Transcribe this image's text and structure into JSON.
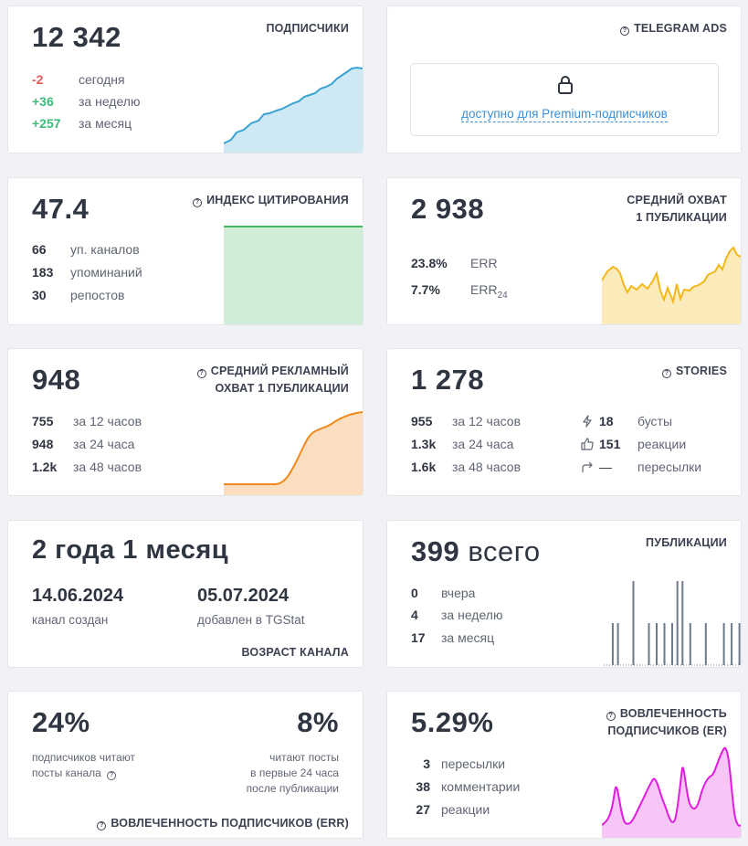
{
  "subscribers": {
    "title": "ПОДПИСЧИКИ",
    "value": "12 342",
    "rows": [
      {
        "value": "-2",
        "label": "сегодня"
      },
      {
        "value": "+36",
        "label": "за неделю"
      },
      {
        "value": "+257",
        "label": "за месяц"
      }
    ],
    "color": "#3ba2d3"
  },
  "ads": {
    "title": "TELEGRAM ADS",
    "premium_link": "доступно для Premium-подписчиков"
  },
  "citation": {
    "title": "ИНДЕКС ЦИТИРОВАНИЯ",
    "value": "47.4",
    "rows": [
      {
        "value": "66",
        "label": "уп. каналов"
      },
      {
        "value": "183",
        "label": "упоминаний"
      },
      {
        "value": "30",
        "label": "репостов"
      }
    ],
    "color": "#3fb85f"
  },
  "reach": {
    "title_line1": "СРЕДНИЙ ОХВАТ",
    "title_line2": "1 ПУБЛИКАЦИИ",
    "value": "2 938",
    "err": {
      "value": "23.8%",
      "label": "ERR"
    },
    "err24": {
      "value": "7.7%",
      "label": "ERR",
      "sub": "24"
    },
    "color": "#f2b81c"
  },
  "ad_reach": {
    "title_line1": "СРЕДНИЙ РЕКЛАМНЫЙ",
    "title_line2": "ОХВАТ 1 ПУБЛИКАЦИИ",
    "value": "948",
    "rows": [
      {
        "value": "755",
        "label": "за 12 часов"
      },
      {
        "value": "948",
        "label": "за 24 часа"
      },
      {
        "value": "1.2k",
        "label": "за 48 часов"
      }
    ],
    "color": "#f08a1c"
  },
  "stories": {
    "title": "STORIES",
    "value": "1 278",
    "rows": [
      {
        "value": "955",
        "label": "за 12 часов"
      },
      {
        "value": "1.3k",
        "label": "за 24 часа"
      },
      {
        "value": "1.6k",
        "label": "за 48 часов"
      }
    ],
    "stats": [
      {
        "icon": "lightning-icon",
        "value": "18",
        "label": "бусты"
      },
      {
        "icon": "thumbs-up-icon",
        "value": "151",
        "label": "реакции"
      },
      {
        "icon": "forward-icon",
        "value": "—",
        "label": "пересылки"
      }
    ]
  },
  "age": {
    "value": "2 года 1 месяц",
    "created_date": "14.06.2024",
    "created_label": "канал создан",
    "added_date": "05.07.2024",
    "added_label": "добавлен в TGStat",
    "footer": "ВОЗРАСТ КАНАЛА"
  },
  "posts": {
    "title": "ПУБЛИКАЦИИ",
    "value": "399",
    "value_suffix": "всего",
    "rows": [
      {
        "value": "0",
        "label": "вчера"
      },
      {
        "value": "4",
        "label": "за неделю"
      },
      {
        "value": "17",
        "label": "за месяц"
      }
    ],
    "bars": [
      0,
      0,
      0,
      1,
      0,
      1,
      0,
      0,
      0,
      0,
      0,
      2,
      0,
      0,
      0,
      0,
      0,
      1,
      0,
      0,
      1,
      0,
      0,
      1,
      0,
      0,
      1,
      0,
      2,
      0,
      2,
      0,
      0,
      1,
      0,
      0,
      0,
      0,
      0,
      1,
      0,
      0,
      0,
      0,
      0,
      0,
      1,
      0,
      0,
      1,
      0,
      0,
      1
    ],
    "color": "#6c7a8a"
  },
  "err_engagement": {
    "left_value": "24%",
    "left_text_line1": "подписчиков читают",
    "left_text_line2": "посты канала",
    "right_value": "8%",
    "right_text_line1": "читают посты",
    "right_text_line2": "в первые 24 часа",
    "right_text_line3": "после публикации",
    "footer": "ВОВЛЕЧЕННОСТЬ ПОДПИСЧИКОВ (ERR)"
  },
  "er": {
    "title_line1": "ВОВЛЕЧЕННОСТЬ",
    "title_line2": "ПОДПИСЧИКОВ (ER)",
    "value": "5.29%",
    "rows": [
      {
        "value": "3",
        "label": "пересылки"
      },
      {
        "value": "38",
        "label": "комментарии"
      },
      {
        "value": "27",
        "label": "реакции"
      }
    ],
    "color": "#e11be0"
  }
}
